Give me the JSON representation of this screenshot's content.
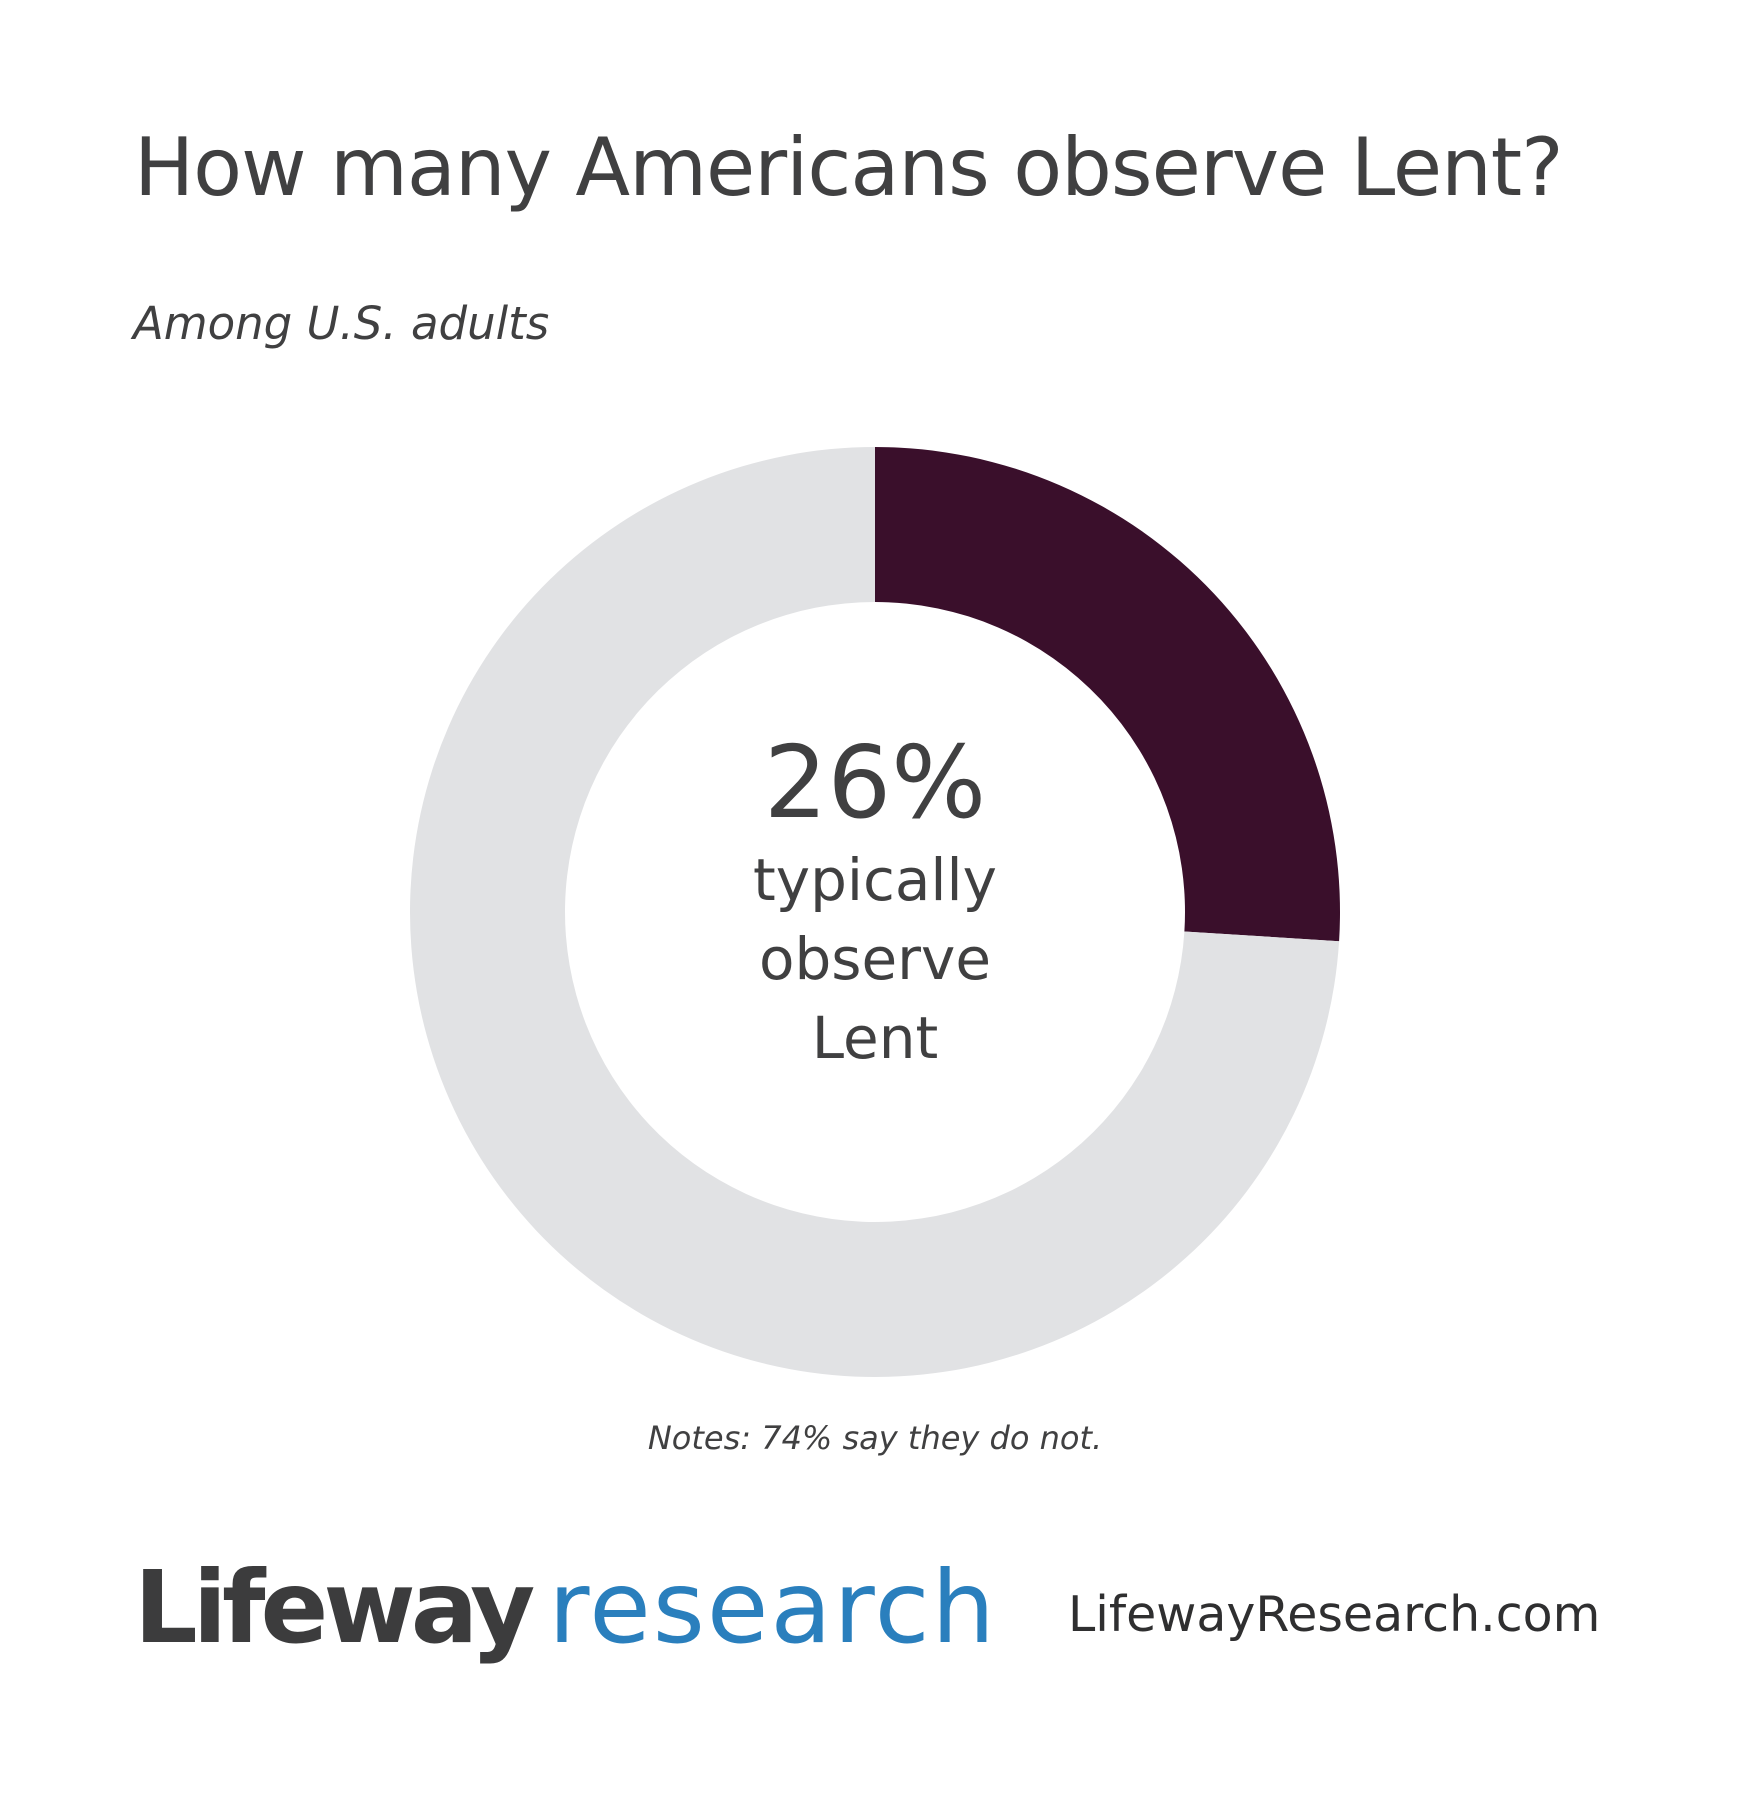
{
  "header": {
    "title": "How many Americans observe Lent?",
    "subtitle": "Among U.S. adults"
  },
  "chart_data": {
    "type": "pie",
    "style": "donut",
    "slices": [
      {
        "label": "typically observe Lent",
        "value": 26,
        "color": "#3a0f2b"
      },
      {
        "label": "say they do not",
        "value": 74,
        "color": "#e1e2e4"
      }
    ],
    "center_value": "26%",
    "center_label_lines": [
      "typically",
      "observe",
      "Lent"
    ]
  },
  "notes": "Notes: 74% say they do not.",
  "footer": {
    "logo_part1": "Lifeway",
    "logo_part2": "research",
    "url": "LifewayResearch.com"
  }
}
